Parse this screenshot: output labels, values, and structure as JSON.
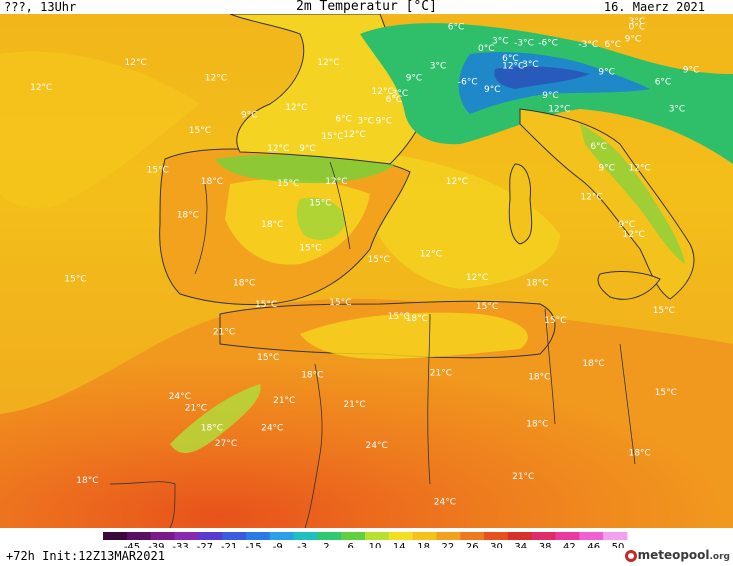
{
  "header": {
    "left": "???, 13Uhr",
    "title": "2m Temperatur [°C]",
    "date": "16. Maerz 2021"
  },
  "footer": {
    "run": "+72h  Init:12Z13MAR2021",
    "brand": "meteopool",
    "brand_suffix": ".org"
  },
  "colorbar": {
    "labels": [
      "-45",
      "-39",
      "-33",
      "-27",
      "-21",
      "-15",
      "-9",
      "-3",
      "2",
      "6",
      "10",
      "14",
      "18",
      "22",
      "26",
      "30",
      "34",
      "38",
      "42",
      "46",
      "50"
    ]
  },
  "temperature_labels": [
    {
      "text": "12°C",
      "lon": -16.5,
      "lat": 46.7
    },
    {
      "text": "12°C",
      "lon": -11.8,
      "lat": 48.0
    },
    {
      "text": "12°C",
      "lon": -7.8,
      "lat": 47.2
    },
    {
      "text": "12°C",
      "lon": -2.2,
      "lat": 48.0
    },
    {
      "text": "12°C",
      "lon": 0.5,
      "lat": 46.5
    },
    {
      "text": "9°C",
      "lon": 2.2,
      "lat": 47.2
    },
    {
      "text": "6°C",
      "lon": 4.3,
      "lat": 49.8
    },
    {
      "text": "0°C",
      "lon": 5.8,
      "lat": 48.7
    },
    {
      "text": "3°C",
      "lon": 6.5,
      "lat": 49.1
    },
    {
      "text": "-3°C",
      "lon": 7.6,
      "lat": 49.0
    },
    {
      "text": "-6°C",
      "lon": 8.8,
      "lat": 49.0
    },
    {
      "text": "-3°C",
      "lon": 10.8,
      "lat": 48.9
    },
    {
      "text": "6°C",
      "lon": 12.1,
      "lat": 48.9
    },
    {
      "text": "9°C",
      "lon": 13.1,
      "lat": 49.2
    },
    {
      "text": "3°C",
      "lon": 13.3,
      "lat": 50.1
    },
    {
      "text": "0°C",
      "lon": 13.3,
      "lat": 49.8
    },
    {
      "text": "3°C",
      "lon": 3.4,
      "lat": 47.8
    },
    {
      "text": "6°C",
      "lon": 7.0,
      "lat": 48.2
    },
    {
      "text": "12°C",
      "lon": 7.0,
      "lat": 47.8
    },
    {
      "text": "3°C",
      "lon": 8.0,
      "lat": 47.9
    },
    {
      "text": "-6°C",
      "lon": 4.8,
      "lat": 47.0
    },
    {
      "text": "9°C",
      "lon": 6.1,
      "lat": 46.6
    },
    {
      "text": "3°C",
      "lon": 1.5,
      "lat": 46.4
    },
    {
      "text": "6°C",
      "lon": 1.2,
      "lat": 46.1
    },
    {
      "text": "9°C",
      "lon": 11.8,
      "lat": 47.5
    },
    {
      "text": "6°C",
      "lon": 14.6,
      "lat": 47.0
    },
    {
      "text": "9°C",
      "lon": 16.0,
      "lat": 47.6
    },
    {
      "text": "3°C",
      "lon": 15.3,
      "lat": 45.6
    },
    {
      "text": "12°C",
      "lon": -3.8,
      "lat": 45.7
    },
    {
      "text": "9°C",
      "lon": -6.0,
      "lat": 45.3
    },
    {
      "text": "6°C",
      "lon": -1.3,
      "lat": 45.1
    },
    {
      "text": "3°C",
      "lon": -0.2,
      "lat": 45.0
    },
    {
      "text": "9°C",
      "lon": 0.7,
      "lat": 45.0
    },
    {
      "text": "15°C",
      "lon": -8.6,
      "lat": 44.5
    },
    {
      "text": "12°C",
      "lon": -4.7,
      "lat": 43.6
    },
    {
      "text": "15°C",
      "lon": -2.0,
      "lat": 44.2
    },
    {
      "text": "12°C",
      "lon": -0.9,
      "lat": 44.3
    },
    {
      "text": "9°C",
      "lon": -3.1,
      "lat": 43.6
    },
    {
      "text": "12°C",
      "lon": 9.3,
      "lat": 45.6
    },
    {
      "text": "9°C",
      "lon": 9.0,
      "lat": 46.3
    },
    {
      "text": "6°C",
      "lon": 11.4,
      "lat": 43.7
    },
    {
      "text": "9°C",
      "lon": 11.8,
      "lat": 42.6
    },
    {
      "text": "12°C",
      "lon": 13.3,
      "lat": 42.6
    },
    {
      "text": "15°C",
      "lon": -10.7,
      "lat": 42.5
    },
    {
      "text": "18°C",
      "lon": -8.0,
      "lat": 41.9
    },
    {
      "text": "15°C",
      "lon": -4.2,
      "lat": 41.8
    },
    {
      "text": "12°C",
      "lon": -1.8,
      "lat": 41.9
    },
    {
      "text": "15°C",
      "lon": -2.6,
      "lat": 40.8
    },
    {
      "text": "12°C",
      "lon": 4.2,
      "lat": 41.9
    },
    {
      "text": "18°C",
      "lon": -9.2,
      "lat": 40.2
    },
    {
      "text": "18°C",
      "lon": -5.0,
      "lat": 39.7
    },
    {
      "text": "15°C",
      "lon": -3.1,
      "lat": 38.5
    },
    {
      "text": "12°C",
      "lon": 10.9,
      "lat": 41.1
    },
    {
      "text": "9°C",
      "lon": 12.8,
      "lat": 39.7
    },
    {
      "text": "12°C",
      "lon": 13.0,
      "lat": 39.2
    },
    {
      "text": "15°C",
      "lon": -14.8,
      "lat": 36.9
    },
    {
      "text": "18°C",
      "lon": -6.4,
      "lat": 36.7
    },
    {
      "text": "15°C",
      "lon": 0.3,
      "lat": 37.9
    },
    {
      "text": "12°C",
      "lon": 2.9,
      "lat": 38.2
    },
    {
      "text": "12°C",
      "lon": 5.2,
      "lat": 37.0
    },
    {
      "text": "18°C",
      "lon": 8.2,
      "lat": 36.7
    },
    {
      "text": "15°C",
      "lon": -5.3,
      "lat": 35.6
    },
    {
      "text": "15°C",
      "lon": -1.6,
      "lat": 35.7
    },
    {
      "text": "15°C",
      "lon": 1.3,
      "lat": 35.0
    },
    {
      "text": "18°C",
      "lon": 2.2,
      "lat": 34.9
    },
    {
      "text": "15°C",
      "lon": 5.7,
      "lat": 35.5
    },
    {
      "text": "15°C",
      "lon": 9.1,
      "lat": 34.8
    },
    {
      "text": "15°C",
      "lon": 14.5,
      "lat": 35.3
    },
    {
      "text": "21°C",
      "lon": -7.4,
      "lat": 34.2
    },
    {
      "text": "15°C",
      "lon": -5.2,
      "lat": 32.9
    },
    {
      "text": "18°C",
      "lon": -3.0,
      "lat": 32.0
    },
    {
      "text": "21°C",
      "lon": 3.4,
      "lat": 32.1
    },
    {
      "text": "18°C",
      "lon": 8.3,
      "lat": 31.9
    },
    {
      "text": "18°C",
      "lon": 11.0,
      "lat": 32.6
    },
    {
      "text": "24°C",
      "lon": -9.6,
      "lat": 30.9
    },
    {
      "text": "21°C",
      "lon": -8.8,
      "lat": 30.3
    },
    {
      "text": "21°C",
      "lon": -4.4,
      "lat": 30.7
    },
    {
      "text": "21°C",
      "lon": -0.9,
      "lat": 30.5
    },
    {
      "text": "15°C",
      "lon": 14.6,
      "lat": 31.1
    },
    {
      "text": "18°C",
      "lon": -8.0,
      "lat": 29.3
    },
    {
      "text": "24°C",
      "lon": -5.0,
      "lat": 29.3
    },
    {
      "text": "27°C",
      "lon": -7.3,
      "lat": 28.5
    },
    {
      "text": "18°C",
      "lon": 8.2,
      "lat": 29.5
    },
    {
      "text": "24°C",
      "lon": 0.2,
      "lat": 28.4
    },
    {
      "text": "18°C",
      "lon": 13.3,
      "lat": 28.0
    },
    {
      "text": "21°C",
      "lon": 7.5,
      "lat": 26.8
    },
    {
      "text": "18°C",
      "lon": -14.2,
      "lat": 26.6
    },
    {
      "text": "24°C",
      "lon": 3.6,
      "lat": 25.5
    }
  ]
}
